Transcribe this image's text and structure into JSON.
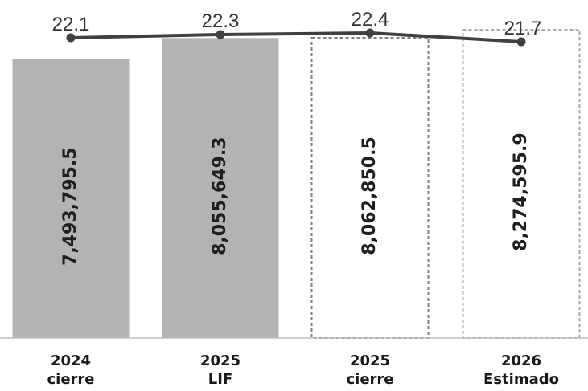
{
  "chart_data": {
    "type": "bar",
    "categories": [
      [
        "2024",
        "cierre"
      ],
      [
        "2025",
        "LIF"
      ],
      [
        "2025",
        "cierre"
      ],
      [
        "2026",
        "Estimado"
      ]
    ],
    "bar_series": {
      "values": [
        7493795.5,
        8055649.3,
        8062850.5,
        8274595.9
      ],
      "labels": [
        "7,493,795.5",
        "8,055,649.3",
        "8,062,850.5",
        "8,274,595.9"
      ],
      "styles": [
        "solid",
        "solid",
        "dashed",
        "dashed"
      ]
    },
    "line_series": {
      "values": [
        22.1,
        22.3,
        22.4,
        21.7
      ],
      "labels": [
        "22.1",
        "22.3",
        "22.4",
        "21.7"
      ]
    },
    "colors": {
      "solid_bar": "#b3b3b3",
      "dashed_outline": "#a6a6a6",
      "line": "#404040",
      "axis": "#bfbfbf"
    },
    "ylim_bars": [
      0,
      8300000
    ],
    "legend": "none",
    "grid": false
  }
}
